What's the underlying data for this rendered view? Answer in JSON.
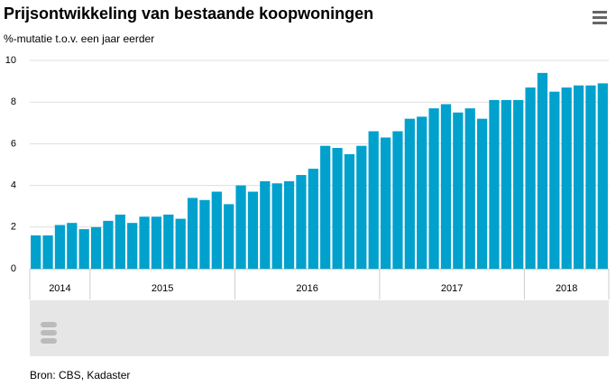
{
  "chart_data": {
    "type": "bar",
    "title": "Prijsontwikkeling van bestaande koopwoningen",
    "subtitle": "%-mutatie t.o.v. een jaar eerder",
    "source": "Bron: CBS, Kadaster",
    "color": "#00a1cd",
    "groups": [
      {
        "label": "2014",
        "values": [
          1.6,
          1.6,
          2.1,
          2.2,
          1.9
        ]
      },
      {
        "label": "2015",
        "values": [
          2.0,
          2.3,
          2.6,
          2.2,
          2.5,
          2.5,
          2.6,
          2.4,
          3.4,
          3.3,
          3.7,
          3.1
        ]
      },
      {
        "label": "2016",
        "values": [
          4.0,
          3.7,
          4.2,
          4.1,
          4.2,
          4.5,
          4.8,
          5.9,
          5.8,
          5.5,
          5.9,
          6.6
        ]
      },
      {
        "label": "2017",
        "values": [
          6.3,
          6.6,
          7.2,
          7.3,
          7.7,
          7.9,
          7.5,
          7.7,
          7.2,
          8.1,
          8.1,
          8.1
        ]
      },
      {
        "label": "2018",
        "values": [
          8.7,
          9.4,
          8.5,
          8.7,
          8.8,
          8.8,
          8.9
        ]
      }
    ],
    "ylim": [
      0,
      10
    ],
    "yticks": [
      0,
      2,
      4,
      6,
      8,
      10
    ],
    "grid": true
  }
}
